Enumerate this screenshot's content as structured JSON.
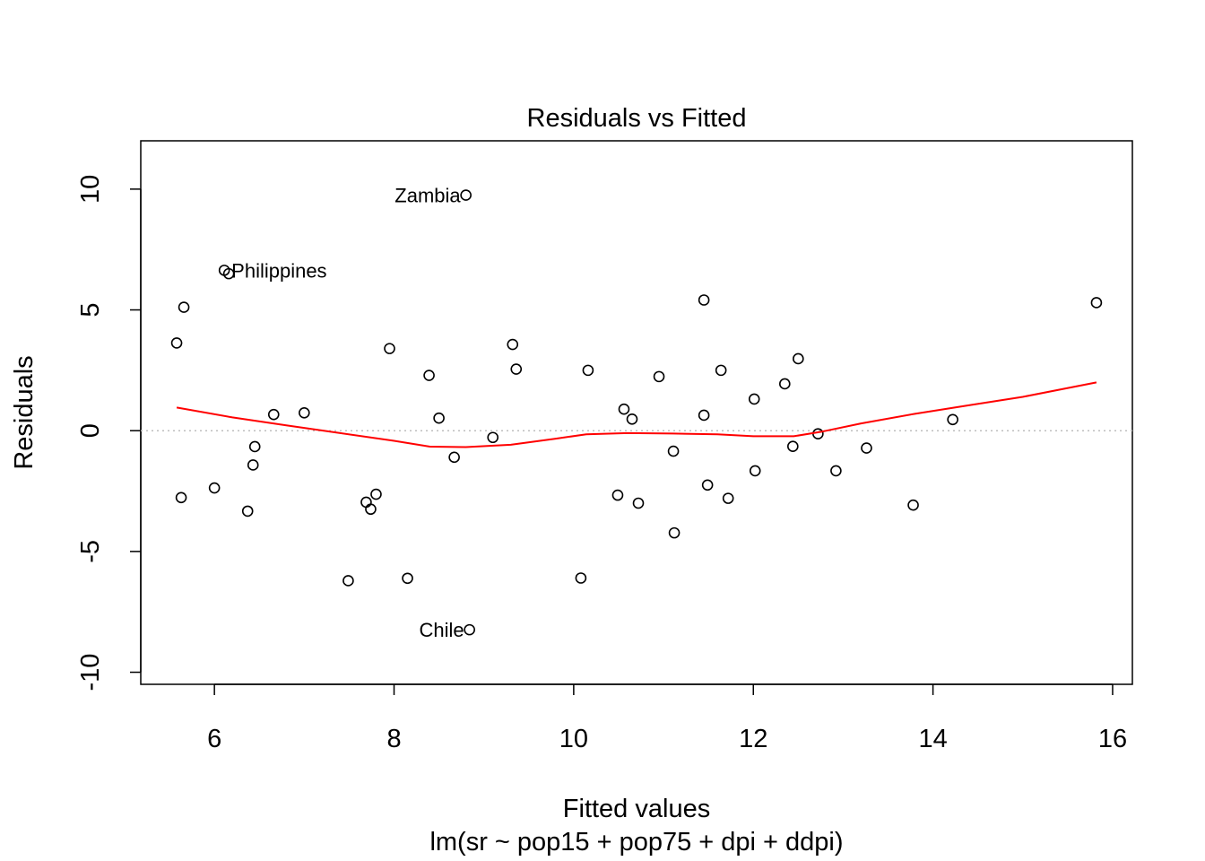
{
  "chart_data": {
    "type": "scatter",
    "title": "Residuals vs Fitted",
    "xlabel": "Fitted values",
    "subtitle": "lm(sr ~ pop15 + pop75 + dpi + ddpi)",
    "ylabel": "Residuals",
    "xlim": [
      5.18,
      16.22
    ],
    "ylim": [
      -10.5,
      12.0
    ],
    "xticks": [
      6,
      8,
      10,
      12,
      14,
      16
    ],
    "yticks": [
      -10,
      -5,
      0,
      5,
      10
    ],
    "reference_line": {
      "y": 0,
      "style": "dotted",
      "color": "#bebebe"
    },
    "points": [
      {
        "x": 5.58,
        "y": 3.63
      },
      {
        "x": 5.63,
        "y": -2.77
      },
      {
        "x": 5.66,
        "y": 5.11
      },
      {
        "x": 6.0,
        "y": -2.37
      },
      {
        "x": 6.11,
        "y": 6.64
      },
      {
        "x": 6.16,
        "y": 6.5
      },
      {
        "x": 6.37,
        "y": -3.33
      },
      {
        "x": 6.43,
        "y": -1.42
      },
      {
        "x": 6.45,
        "y": -0.66
      },
      {
        "x": 6.66,
        "y": 0.67
      },
      {
        "x": 7.0,
        "y": 0.74
      },
      {
        "x": 7.49,
        "y": -6.21
      },
      {
        "x": 7.69,
        "y": -2.96
      },
      {
        "x": 7.74,
        "y": -3.25
      },
      {
        "x": 7.8,
        "y": -2.63
      },
      {
        "x": 7.95,
        "y": 3.4
      },
      {
        "x": 8.15,
        "y": -6.11
      },
      {
        "x": 8.39,
        "y": 2.29
      },
      {
        "x": 8.5,
        "y": 0.52
      },
      {
        "x": 8.67,
        "y": -1.1
      },
      {
        "x": 8.8,
        "y": 9.75
      },
      {
        "x": 8.84,
        "y": -8.24
      },
      {
        "x": 9.1,
        "y": -0.28
      },
      {
        "x": 9.32,
        "y": 3.57
      },
      {
        "x": 9.36,
        "y": 2.55
      },
      {
        "x": 10.08,
        "y": -6.1
      },
      {
        "x": 10.16,
        "y": 2.5
      },
      {
        "x": 10.49,
        "y": -2.67
      },
      {
        "x": 10.56,
        "y": 0.89
      },
      {
        "x": 10.65,
        "y": 0.48
      },
      {
        "x": 10.72,
        "y": -3.0
      },
      {
        "x": 10.95,
        "y": 2.24
      },
      {
        "x": 11.11,
        "y": -0.85
      },
      {
        "x": 11.12,
        "y": -4.23
      },
      {
        "x": 11.45,
        "y": 0.64
      },
      {
        "x": 11.45,
        "y": 5.41
      },
      {
        "x": 11.49,
        "y": -2.25
      },
      {
        "x": 11.64,
        "y": 2.5
      },
      {
        "x": 11.72,
        "y": -2.8
      },
      {
        "x": 12.01,
        "y": 1.31
      },
      {
        "x": 12.02,
        "y": -1.66
      },
      {
        "x": 12.35,
        "y": 1.94
      },
      {
        "x": 12.44,
        "y": -0.65
      },
      {
        "x": 12.5,
        "y": 2.98
      },
      {
        "x": 12.72,
        "y": -0.13
      },
      {
        "x": 12.92,
        "y": -1.66
      },
      {
        "x": 13.26,
        "y": -0.72
      },
      {
        "x": 13.78,
        "y": -3.08
      },
      {
        "x": 14.22,
        "y": 0.46
      },
      {
        "x": 15.82,
        "y": 5.3
      }
    ],
    "labels": [
      {
        "text": "Zambia",
        "x": 8.8,
        "y": 9.75,
        "pos": "left"
      },
      {
        "text": "Philippines",
        "x": 6.11,
        "y": 6.64,
        "pos": "right"
      },
      {
        "text": "Chile",
        "x": 8.84,
        "y": -8.24,
        "pos": "left"
      }
    ],
    "smooth": {
      "color": "#ff0000",
      "x": [
        5.58,
        6.2,
        6.8,
        7.4,
        8.0,
        8.4,
        8.8,
        9.3,
        9.8,
        10.14,
        10.6,
        11.1,
        11.6,
        12.0,
        12.45,
        12.75,
        13.2,
        13.8,
        14.4,
        15.0,
        15.82
      ],
      "y": [
        0.96,
        0.55,
        0.22,
        -0.1,
        -0.42,
        -0.66,
        -0.68,
        -0.58,
        -0.33,
        -0.15,
        -0.1,
        -0.12,
        -0.15,
        -0.23,
        -0.23,
        -0.05,
        0.3,
        0.7,
        1.05,
        1.4,
        2.0
      ]
    }
  }
}
